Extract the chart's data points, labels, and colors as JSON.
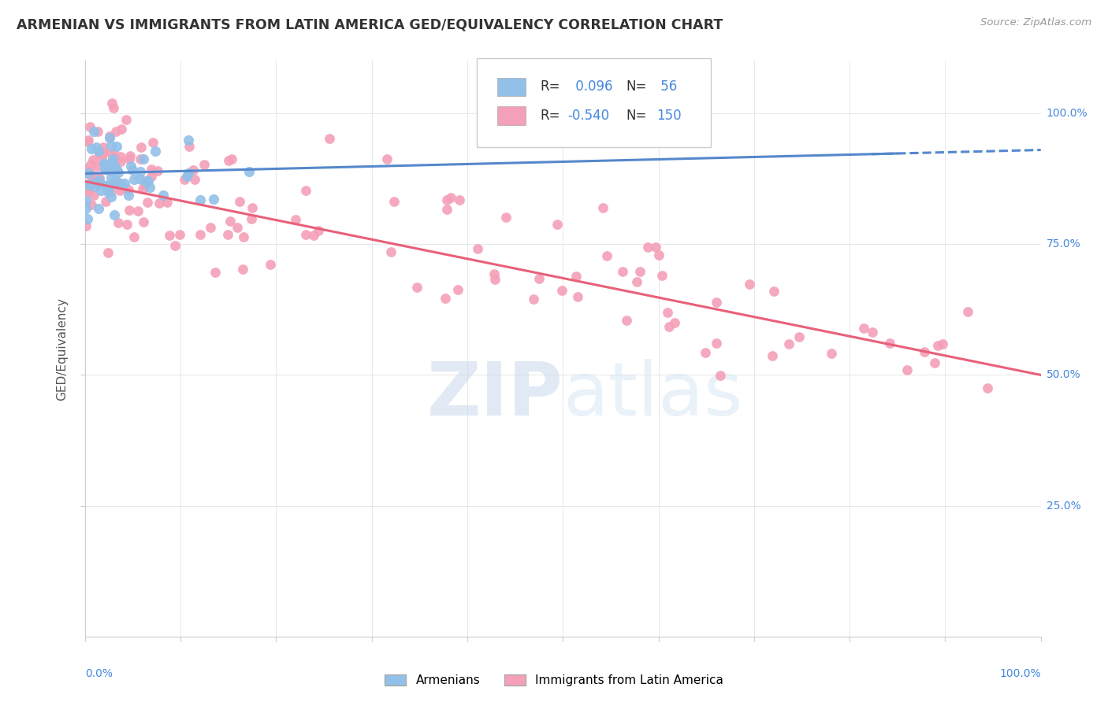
{
  "title": "ARMENIAN VS IMMIGRANTS FROM LATIN AMERICA GED/EQUIVALENCY CORRELATION CHART",
  "source": "Source: ZipAtlas.com",
  "ylabel": "GED/Equivalency",
  "legend_label1": "Armenians",
  "legend_label2": "Immigrants from Latin America",
  "R1": 0.096,
  "N1": 56,
  "R2": -0.54,
  "N2": 150,
  "color_armenian": "#92C0E8",
  "color_latin": "#F4A0B8",
  "color_armenian_line": "#5588CC",
  "color_latin_line": "#E8607A",
  "color_title": "#333333",
  "color_source": "#999999",
  "color_axis_labels": "#4488DD",
  "background_color": "#FFFFFF",
  "xlim": [
    0.0,
    1.0
  ],
  "ylim": [
    0.0,
    1.1
  ],
  "yticks": [
    0.25,
    0.5,
    0.75,
    1.0
  ],
  "ytick_labels": [
    "25.0%",
    "50.0%",
    "75.0%",
    "100.0%"
  ]
}
